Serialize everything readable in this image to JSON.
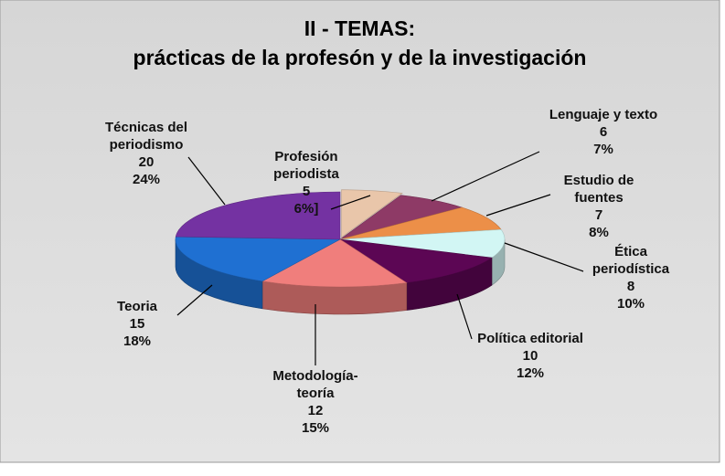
{
  "chart_data": {
    "type": "pie3d",
    "title": "II - TEMAS:",
    "subtitle": "prácticas de la profesón y de la investigación",
    "categories": [
      "Profesión periodista",
      "Lenguaje y texto",
      "Estudio de fuentes",
      "Ética periodística",
      "Política editorial",
      "Metodología-teoría",
      "Teoria",
      "Técnicas del periodismo"
    ],
    "values": [
      5,
      6,
      7,
      8,
      10,
      12,
      15,
      20
    ],
    "percent_labels": [
      "6%]",
      "7%",
      "8%",
      "10%",
      "12%",
      "15%",
      "18%",
      "24%"
    ],
    "colors": [
      "#e9c6aa",
      "#8e3a66",
      "#ec8f48",
      "#d2f6f4",
      "#5c0654",
      "#f07e7c",
      "#1f70d2",
      "#7432a2"
    ]
  }
}
